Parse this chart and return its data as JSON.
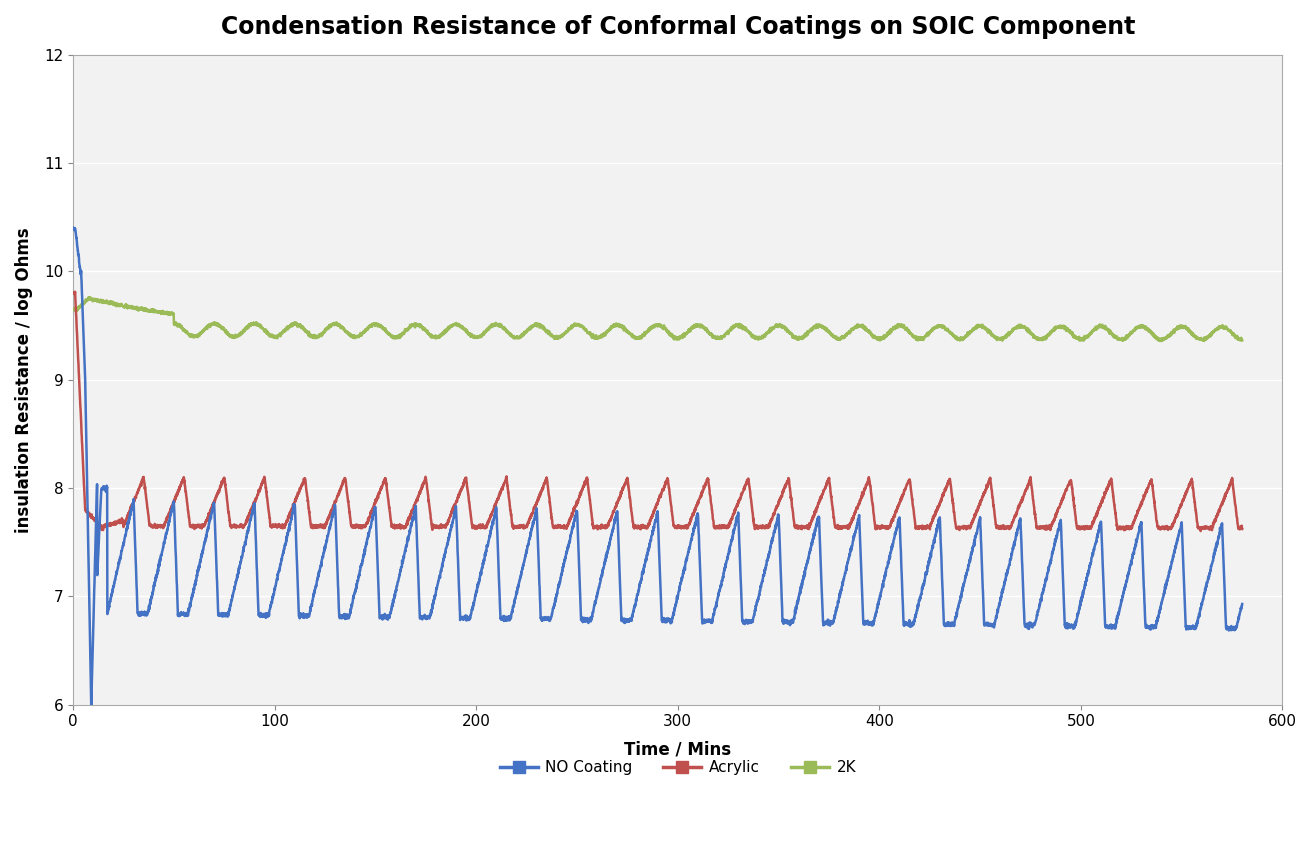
{
  "title": "Condensation Resistance of Conformal Coatings on SOIC Component",
  "xlabel": "Time / Mins",
  "ylabel": "insulation Resistance / log Ohms",
  "xlim": [
    0,
    600
  ],
  "ylim": [
    6,
    12
  ],
  "yticks": [
    6,
    7,
    8,
    9,
    10,
    11,
    12
  ],
  "xticks": [
    0,
    100,
    200,
    300,
    400,
    500,
    600
  ],
  "colors": {
    "no_coating": "#4472C4",
    "acrylic": "#C0504D",
    "twoK": "#9BBB59"
  },
  "background_color": "#FFFFFF",
  "plot_bg_color": "#F2F2F2",
  "grid_color": "#FFFFFF",
  "legend_labels": [
    "NO Coating",
    "Acrylic",
    "2K"
  ],
  "title_fontsize": 17,
  "axis_label_fontsize": 12,
  "tick_fontsize": 11,
  "linewidth": 1.8
}
